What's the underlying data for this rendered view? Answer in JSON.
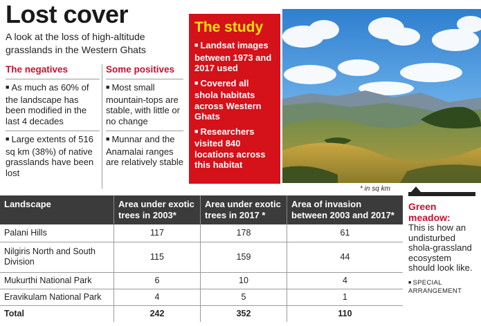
{
  "header": {
    "title": "Lost cover",
    "subtitle": "A look at the loss of high-altitude grasslands in the Western Ghats"
  },
  "negatives": {
    "heading": "The negatives",
    "items": [
      "As much as 60% of the landscape has been modified in the last 4 decades",
      "Large extents of 516 sq km (38%) of native grasslands have been lost"
    ]
  },
  "positives": {
    "heading": "Some positives",
    "items": [
      "Most small mountain-tops are stable, with little or no change",
      "Munnar and the Anamalai ranges are relatively stable"
    ]
  },
  "study": {
    "heading": "The study",
    "items": [
      "Landsat images between 1973 and 2017 used",
      "Covered all shola habitats across Western Ghats",
      "Researchers visited  840 locations across this habitat"
    ]
  },
  "unit_note": "* in sq km",
  "table": {
    "headers": [
      "Landscape",
      "Area under exotic trees in 2003*",
      "Area under exotic trees in 2017 *",
      "Area of invasion between 2003 and 2017*"
    ],
    "rows": [
      {
        "name": "Palani Hills",
        "a2003": "117",
        "a2017": "178",
        "inv": "61"
      },
      {
        "name": "Nilgiris North and South Division",
        "a2003": "115",
        "a2017": "159",
        "inv": "44"
      },
      {
        "name": "Mukurthi National Park",
        "a2003": "6",
        "a2017": "10",
        "inv": "4"
      },
      {
        "name": "Eravikulam National Park",
        "a2003": "4",
        "a2017": "5",
        "inv": "1"
      }
    ],
    "total": {
      "name": "Total",
      "a2003": "242",
      "a2017": "352",
      "inv": "110"
    }
  },
  "sidebar": {
    "heading": "Green meadow:",
    "text": "This is how an undisturbed shola-grassland ecosystem should look like.",
    "credit": "SPECIAL ARRANGEMENT"
  },
  "colors": {
    "accent_red": "#c8102e",
    "study_bg": "#d5111a",
    "study_heading": "#ffe200",
    "table_header_bg": "#3b3b3b"
  }
}
